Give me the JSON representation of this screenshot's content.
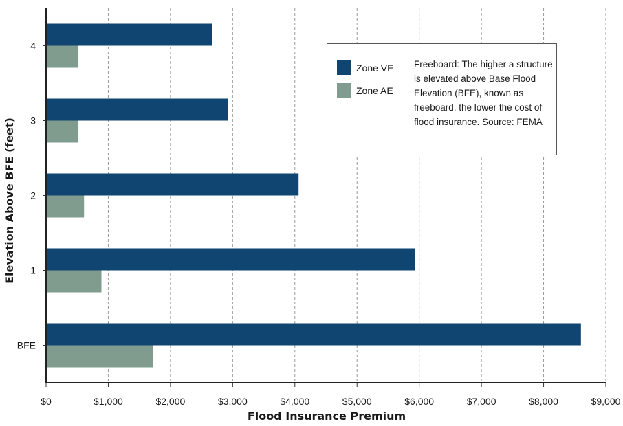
{
  "chart_data": {
    "type": "bar",
    "orientation": "horizontal",
    "categories": [
      "BFE",
      "1",
      "2",
      "3",
      "4"
    ],
    "series": [
      {
        "name": "Zone VE",
        "color": "#0f4570",
        "values": [
          8600,
          5930,
          4060,
          2930,
          2670
        ]
      },
      {
        "name": "Zone AE",
        "color": "#7f9c8f",
        "values": [
          1720,
          890,
          610,
          520,
          520
        ]
      }
    ],
    "xlabel": "Flood Insurance Premium",
    "ylabel": "Elevation Above BFE (feet)",
    "xlim": [
      0,
      9000
    ],
    "xticks": [
      "$0",
      "$1,000",
      "$2,000",
      "$3,000",
      "$4,000",
      "$5,000",
      "$6,000",
      "$7,000",
      "$8,000",
      "$9,000"
    ],
    "grid": "vertical dashed",
    "legend_placement": "top-right",
    "note": "Freeboard: The higher a structure is elevated above Base Flood Elevation (BFE), known as freeboard, the lower the cost of flood insurance. Source: FEMA"
  }
}
